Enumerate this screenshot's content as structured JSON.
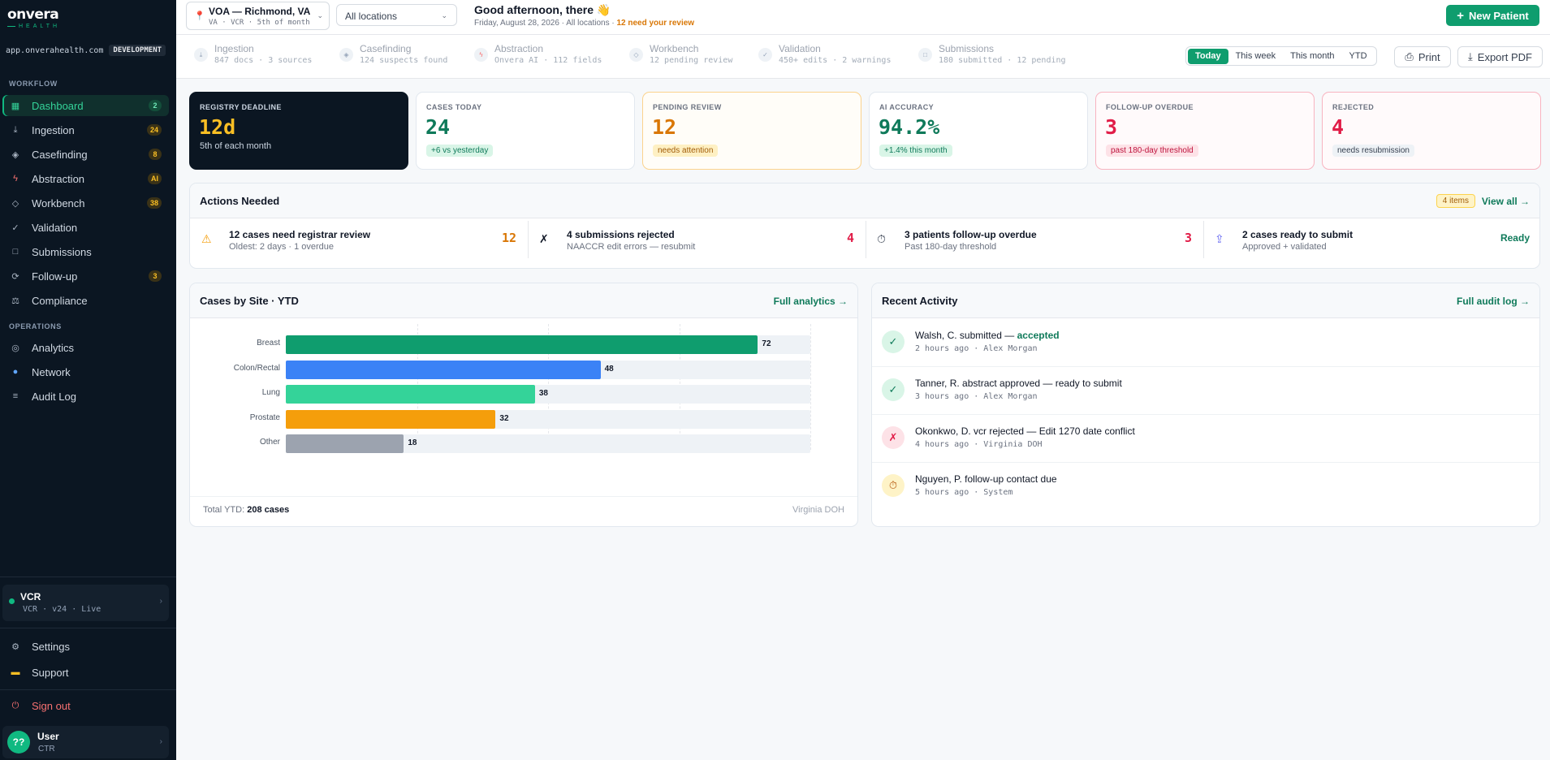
{
  "brand": {
    "name": "onvera",
    "tagline": "HEALTH",
    "domain": "app.onverahealth.com",
    "env": "DEVELOPMENT"
  },
  "sidebar": {
    "workflow_label": "WORKFLOW",
    "operations_label": "OPERATIONS",
    "items": [
      {
        "label": "Dashboard",
        "badge": "2",
        "icon": "dashboard-icon"
      },
      {
        "label": "Ingestion",
        "badge": "24",
        "icon": "ingest-icon"
      },
      {
        "label": "Casefinding",
        "badge": "8",
        "icon": "diamond-icon"
      },
      {
        "label": "Abstraction",
        "badge": "AI",
        "icon": "bolt-icon"
      },
      {
        "label": "Workbench",
        "badge": "38",
        "icon": "diamond-outline-icon"
      },
      {
        "label": "Validation",
        "badge": "",
        "icon": "check-icon"
      },
      {
        "label": "Submissions",
        "badge": "",
        "icon": "square-icon"
      },
      {
        "label": "Follow-up",
        "badge": "3",
        "icon": "refresh-icon"
      },
      {
        "label": "Compliance",
        "badge": "",
        "icon": "scale-icon"
      }
    ],
    "ops_items": [
      {
        "label": "Analytics",
        "icon": "target-icon"
      },
      {
        "label": "Network",
        "icon": "globe-icon"
      },
      {
        "label": "Audit Log",
        "icon": "list-icon"
      }
    ],
    "org": {
      "name": "VCR",
      "meta": "VCR · v24 · Live"
    },
    "settings": "Settings",
    "support": "Support",
    "signout": "Sign out",
    "user": {
      "initials": "??",
      "name": "User",
      "role": "CTR"
    }
  },
  "header": {
    "location_name": "VOA — Richmond, VA",
    "location_meta": "VA · VCR · 5th of month",
    "all_locations": "All locations",
    "greeting": "Good afternoon, there 👋",
    "date_line": "Friday, August 28, 2026 · All locations ·",
    "review_alert": "12 need your review",
    "new_patient": "New Patient"
  },
  "pipeline": {
    "steps": [
      {
        "title": "Ingestion",
        "meta": "847 docs · 3 sources",
        "icon": "ingest-icon"
      },
      {
        "title": "Casefinding",
        "meta": "124 suspects found",
        "icon": "diamond-icon"
      },
      {
        "title": "Abstraction",
        "meta": "Onvera AI · 112 fields",
        "icon": "bolt-icon"
      },
      {
        "title": "Workbench",
        "meta": "12 pending review",
        "icon": "diamond-outline-icon"
      },
      {
        "title": "Validation",
        "meta": "450+ edits · 2 warnings",
        "icon": "check-icon"
      },
      {
        "title": "Submissions",
        "meta": "180 submitted · 12 pending",
        "icon": "square-icon"
      }
    ],
    "ranges": [
      "Today",
      "This week",
      "This month",
      "YTD"
    ],
    "active_range": "Today",
    "print": "Print",
    "export": "Export PDF"
  },
  "kpis": {
    "deadline": {
      "label": "REGISTRY DEADLINE",
      "value": "12d",
      "sub": "5th of each month"
    },
    "cases_today": {
      "label": "CASES TODAY",
      "value": "24",
      "tag": "+6 vs yesterday"
    },
    "pending": {
      "label": "PENDING REVIEW",
      "value": "12",
      "tag": "needs attention"
    },
    "ai": {
      "label": "AI ACCURACY",
      "value": "94.2%",
      "tag": "+1.4% this month"
    },
    "followup": {
      "label": "FOLLOW-UP OVERDUE",
      "value": "3",
      "tag": "past 180-day threshold"
    },
    "rejected": {
      "label": "REJECTED",
      "value": "4",
      "tag": "needs resubmission"
    }
  },
  "actions": {
    "title": "Actions Needed",
    "count": "4 items",
    "view_all": "View all →",
    "items": [
      {
        "title": "12 cases need registrar review",
        "sub": "Oldest: 2 days · 1 overdue",
        "value": "12",
        "icon": "warning-icon"
      },
      {
        "title": "4 submissions rejected",
        "sub": "NAACCR edit errors — resubmit",
        "value": "4",
        "icon": "x-icon"
      },
      {
        "title": "3 patients follow-up overdue",
        "sub": "Past 180-day threshold",
        "value": "3",
        "icon": "timer-icon"
      },
      {
        "title": "2 cases ready to submit",
        "sub": "Approved + validated",
        "value": "Ready",
        "icon": "upload-icon"
      }
    ]
  },
  "chart_panel": {
    "title": "Cases by Site · YTD",
    "link": "Full analytics →",
    "total_label": "Total YTD:",
    "total_value": "208 cases",
    "source": "Virginia DOH"
  },
  "chart_data": {
    "type": "bar",
    "orientation": "horizontal",
    "categories": [
      "Breast",
      "Colon/Rectal",
      "Lung",
      "Prostate",
      "Other"
    ],
    "values": [
      72,
      48,
      38,
      32,
      18
    ],
    "colors": [
      "#0f9d6e",
      "#3b82f6",
      "#34d399",
      "#f59e0b",
      "#9ca3af"
    ],
    "xlim": [
      0,
      80
    ],
    "grid": true
  },
  "activity": {
    "title": "Recent Activity",
    "link": "Full audit log →",
    "items": [
      {
        "text": "Walsh, C. submitted —",
        "highlight": "accepted",
        "meta": "2 hours ago · Alex Morgan",
        "icon": "check-icon",
        "kind": "ok"
      },
      {
        "text": "Tanner, R. abstract approved — ready to submit",
        "highlight": "",
        "meta": "3 hours ago · Alex Morgan",
        "icon": "check-icon",
        "kind": "ok"
      },
      {
        "text": "Okonkwo, D. vcr rejected — Edit 1270 date conflict",
        "highlight": "",
        "meta": "4 hours ago · Virginia DOH",
        "icon": "x-icon",
        "kind": "err"
      },
      {
        "text": "Nguyen, P. follow-up contact due",
        "highlight": "",
        "meta": "5 hours ago · System",
        "icon": "timer-icon",
        "kind": "warn"
      }
    ]
  }
}
